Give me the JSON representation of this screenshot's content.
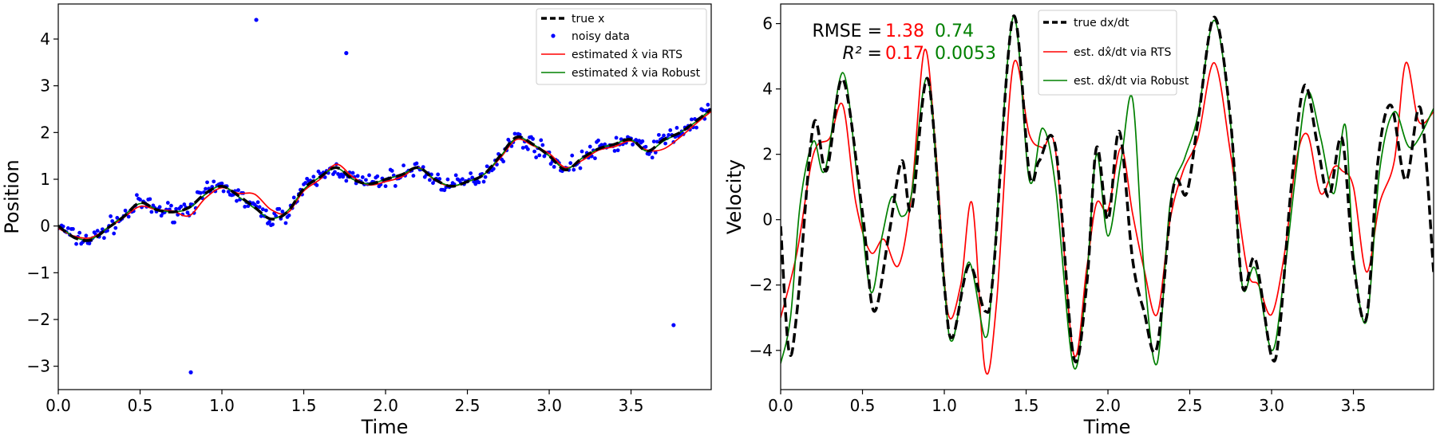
{
  "chart_data": [
    {
      "type": "line",
      "xlabel": "Time",
      "ylabel": "Position",
      "xlim": [
        0,
        3.99
      ],
      "ylim": [
        -3.5,
        4.75
      ],
      "xticks": [
        0.0,
        0.5,
        1.0,
        1.5,
        2.0,
        2.5,
        3.0,
        3.5
      ],
      "xtick_labels": [
        "0.0",
        "0.5",
        "1.0",
        "1.5",
        "2.0",
        "2.5",
        "3.0",
        "3.5"
      ],
      "yticks": [
        -3,
        -2,
        -1,
        0,
        1,
        2,
        3,
        4
      ],
      "ytick_labels": [
        "−3",
        "−2",
        "−1",
        "0",
        "1",
        "2",
        "3",
        "4"
      ],
      "legend_position": "top-right",
      "legend": {
        "true": "true x",
        "noisy": "noisy data",
        "rts": "estimated x̂ via RTS",
        "robust": "estimated x̂ via Robust"
      },
      "series": [
        {
          "name": "true x",
          "style": "dashed",
          "color": "#000000",
          "x": [
            0.0,
            0.1,
            0.2,
            0.3,
            0.4,
            0.5,
            0.6,
            0.7,
            0.8,
            0.9,
            1.0,
            1.1,
            1.2,
            1.3,
            1.4,
            1.5,
            1.6,
            1.7,
            1.8,
            1.9,
            2.0,
            2.1,
            2.2,
            2.3,
            2.4,
            2.5,
            2.6,
            2.7,
            2.8,
            2.9,
            3.0,
            3.1,
            3.2,
            3.3,
            3.4,
            3.5,
            3.6,
            3.7,
            3.8,
            3.9,
            3.99
          ],
          "y": [
            0.0,
            -0.25,
            -0.3,
            -0.05,
            0.2,
            0.5,
            0.35,
            0.3,
            0.4,
            0.7,
            0.85,
            0.65,
            0.4,
            0.15,
            0.3,
            0.8,
            1.05,
            1.25,
            1.0,
            0.9,
            1.0,
            1.1,
            1.25,
            1.0,
            0.85,
            0.95,
            1.1,
            1.5,
            1.9,
            1.75,
            1.5,
            1.2,
            1.45,
            1.65,
            1.75,
            1.85,
            1.6,
            1.85,
            2.0,
            2.25,
            2.5
          ]
        },
        {
          "name": "estimated x̂ via RTS",
          "style": "solid",
          "color": "#ff0000",
          "x": [
            0.0,
            0.1,
            0.2,
            0.3,
            0.4,
            0.5,
            0.6,
            0.7,
            0.8,
            0.9,
            1.0,
            1.1,
            1.2,
            1.3,
            1.4,
            1.5,
            1.6,
            1.7,
            1.8,
            1.9,
            2.0,
            2.1,
            2.2,
            2.3,
            2.4,
            2.5,
            2.6,
            2.7,
            2.8,
            2.9,
            3.0,
            3.1,
            3.2,
            3.3,
            3.4,
            3.5,
            3.6,
            3.7,
            3.8,
            3.9,
            3.99
          ],
          "y": [
            -0.05,
            -0.22,
            -0.25,
            -0.05,
            0.18,
            0.42,
            0.35,
            0.32,
            0.22,
            0.6,
            0.82,
            0.7,
            0.68,
            0.35,
            0.28,
            0.75,
            1.0,
            1.32,
            1.05,
            0.88,
            0.95,
            1.05,
            1.25,
            0.98,
            0.85,
            0.95,
            1.1,
            1.45,
            1.85,
            1.72,
            1.55,
            1.25,
            1.4,
            1.62,
            1.7,
            1.82,
            1.62,
            1.65,
            1.9,
            2.2,
            2.45
          ]
        },
        {
          "name": "estimated x̂ via Robust",
          "style": "solid",
          "color": "#008000",
          "x": [
            0.0,
            0.1,
            0.2,
            0.3,
            0.4,
            0.5,
            0.6,
            0.7,
            0.8,
            0.9,
            1.0,
            1.1,
            1.2,
            1.3,
            1.4,
            1.5,
            1.6,
            1.7,
            1.8,
            1.9,
            2.0,
            2.1,
            2.2,
            2.3,
            2.4,
            2.5,
            2.6,
            2.7,
            2.8,
            2.9,
            3.0,
            3.1,
            3.2,
            3.3,
            3.4,
            3.5,
            3.6,
            3.7,
            3.8,
            3.9,
            3.99
          ],
          "y": [
            0.02,
            -0.24,
            -0.28,
            -0.04,
            0.22,
            0.48,
            0.36,
            0.3,
            0.38,
            0.68,
            0.86,
            0.63,
            0.38,
            0.16,
            0.32,
            0.78,
            1.05,
            1.24,
            1.0,
            0.9,
            1.0,
            1.1,
            1.24,
            1.0,
            0.86,
            0.95,
            1.1,
            1.48,
            1.88,
            1.75,
            1.5,
            1.22,
            1.45,
            1.65,
            1.76,
            1.84,
            1.6,
            1.82,
            2.0,
            2.24,
            2.5
          ]
        }
      ],
      "outliers": [
        {
          "x": 0.81,
          "y": -3.13
        },
        {
          "x": 1.21,
          "y": 4.41
        },
        {
          "x": 1.76,
          "y": 3.7
        },
        {
          "x": 3.76,
          "y": -2.12
        }
      ],
      "noisy_points_note": "blue noisy data points scattered around true x"
    },
    {
      "type": "line",
      "xlabel": "Time",
      "ylabel": "Velocity",
      "xlim": [
        0,
        3.99
      ],
      "ylim": [
        -5.2,
        6.6
      ],
      "xticks": [
        0.0,
        0.5,
        1.0,
        1.5,
        2.0,
        2.5,
        3.0,
        3.5
      ],
      "xtick_labels": [
        "0.0",
        "0.5",
        "1.0",
        "1.5",
        "2.0",
        "2.5",
        "3.0",
        "3.5"
      ],
      "yticks": [
        -4,
        -2,
        0,
        2,
        4,
        6
      ],
      "ytick_labels": [
        "−4",
        "−2",
        "0",
        "2",
        "4",
        "6"
      ],
      "legend_position": "top-center",
      "legend": {
        "true": "true dx/dt",
        "rts": "est. dx̂/dt via RTS",
        "robust": "est. dx̂/dt via Robust"
      },
      "annotation": {
        "rmse_label": "RMSE =",
        "rmse_rts": "1.38",
        "rmse_robust": "0.74",
        "r2_label": "R² =",
        "r2_rts": "0.17",
        "r2_robust": "0.0053",
        "rts_color": "#ff0000",
        "robust_color": "#008000"
      },
      "series": [
        {
          "name": "true dx/dt",
          "style": "dashed",
          "color": "#000000",
          "x": [
            0.0,
            0.05,
            0.1,
            0.2,
            0.28,
            0.38,
            0.5,
            0.57,
            0.66,
            0.74,
            0.8,
            0.9,
            1.0,
            1.05,
            1.15,
            1.25,
            1.3,
            1.42,
            1.52,
            1.58,
            1.68,
            1.79,
            1.87,
            1.93,
            2.0,
            2.07,
            2.15,
            2.22,
            2.3,
            2.4,
            2.48,
            2.55,
            2.65,
            2.75,
            2.82,
            2.9,
            3.0,
            3.05,
            3.12,
            3.2,
            3.28,
            3.35,
            3.43,
            3.5,
            3.58,
            3.65,
            3.73,
            3.82,
            3.91,
            3.99
          ],
          "y": [
            -0.2,
            -4.0,
            -2.8,
            2.9,
            1.5,
            4.3,
            0.2,
            -2.8,
            -0.5,
            1.8,
            0.3,
            4.3,
            -2.0,
            -3.6,
            -1.4,
            -2.8,
            -1.6,
            6.2,
            1.4,
            1.8,
            2.2,
            -4.2,
            -2.0,
            2.2,
            0.0,
            2.7,
            -1.2,
            -2.8,
            -3.9,
            1.0,
            0.8,
            3.0,
            6.2,
            3.0,
            -2.0,
            -1.2,
            -4.2,
            -3.3,
            1.0,
            4.1,
            2.3,
            0.7,
            2.5,
            -1.3,
            -3.0,
            1.8,
            3.5,
            1.2,
            3.4,
            -1.6
          ]
        },
        {
          "name": "est. dx̂/dt via RTS",
          "style": "solid",
          "color": "#ff0000",
          "x": [
            0.0,
            0.1,
            0.2,
            0.3,
            0.38,
            0.46,
            0.55,
            0.63,
            0.72,
            0.8,
            0.88,
            0.95,
            1.02,
            1.1,
            1.17,
            1.25,
            1.32,
            1.42,
            1.52,
            1.6,
            1.68,
            1.79,
            1.87,
            1.93,
            2.0,
            2.08,
            2.15,
            2.22,
            2.3,
            2.38,
            2.46,
            2.55,
            2.65,
            2.75,
            2.85,
            2.92,
            3.0,
            3.08,
            3.15,
            3.22,
            3.3,
            3.38,
            3.43,
            3.5,
            3.58,
            3.66,
            3.75,
            3.82,
            3.9,
            3.99
          ],
          "y": [
            -3.0,
            -1.0,
            2.0,
            2.5,
            3.5,
            0.5,
            -1.0,
            -0.6,
            -1.4,
            0.8,
            5.2,
            2.0,
            -2.8,
            -2.0,
            0.5,
            -4.6,
            -2.5,
            4.7,
            2.6,
            2.2,
            2.1,
            -4.1,
            -1.5,
            0.5,
            0.3,
            2.2,
            0.2,
            -1.5,
            -2.9,
            0.0,
            1.5,
            2.5,
            4.8,
            2.0,
            -1.5,
            -2.0,
            -2.9,
            -1.0,
            1.8,
            2.6,
            0.8,
            1.6,
            1.5,
            1.0,
            -1.6,
            0.5,
            1.8,
            4.8,
            3.0,
            3.3
          ]
        },
        {
          "name": "est. dx̂/dt via Robust",
          "style": "solid",
          "color": "#008000",
          "x": [
            0.0,
            0.06,
            0.12,
            0.2,
            0.27,
            0.38,
            0.47,
            0.55,
            0.62,
            0.68,
            0.74,
            0.8,
            0.9,
            1.0,
            1.05,
            1.15,
            1.25,
            1.3,
            1.42,
            1.52,
            1.6,
            1.68,
            1.79,
            1.87,
            1.93,
            2.0,
            2.08,
            2.15,
            2.22,
            2.3,
            2.38,
            2.47,
            2.55,
            2.65,
            2.75,
            2.82,
            2.9,
            3.0,
            3.07,
            3.15,
            3.22,
            3.3,
            3.38,
            3.45,
            3.5,
            3.58,
            3.66,
            3.75,
            3.85,
            3.99
          ],
          "y": [
            -4.4,
            -3.0,
            0.5,
            2.4,
            1.5,
            4.5,
            1.2,
            -2.2,
            -0.5,
            0.7,
            0.1,
            0.8,
            4.3,
            -2.0,
            -3.7,
            -1.3,
            -3.6,
            -1.5,
            6.2,
            1.2,
            2.8,
            1.0,
            -4.5,
            -1.8,
            2.0,
            -0.5,
            1.8,
            3.7,
            -1.5,
            -4.4,
            0.5,
            1.9,
            3.2,
            6.1,
            2.9,
            -2.0,
            -1.5,
            -4.0,
            -2.0,
            1.5,
            3.9,
            2.5,
            0.8,
            2.9,
            -1.0,
            -3.1,
            1.5,
            3.3,
            2.2,
            3.4
          ]
        }
      ]
    }
  ]
}
